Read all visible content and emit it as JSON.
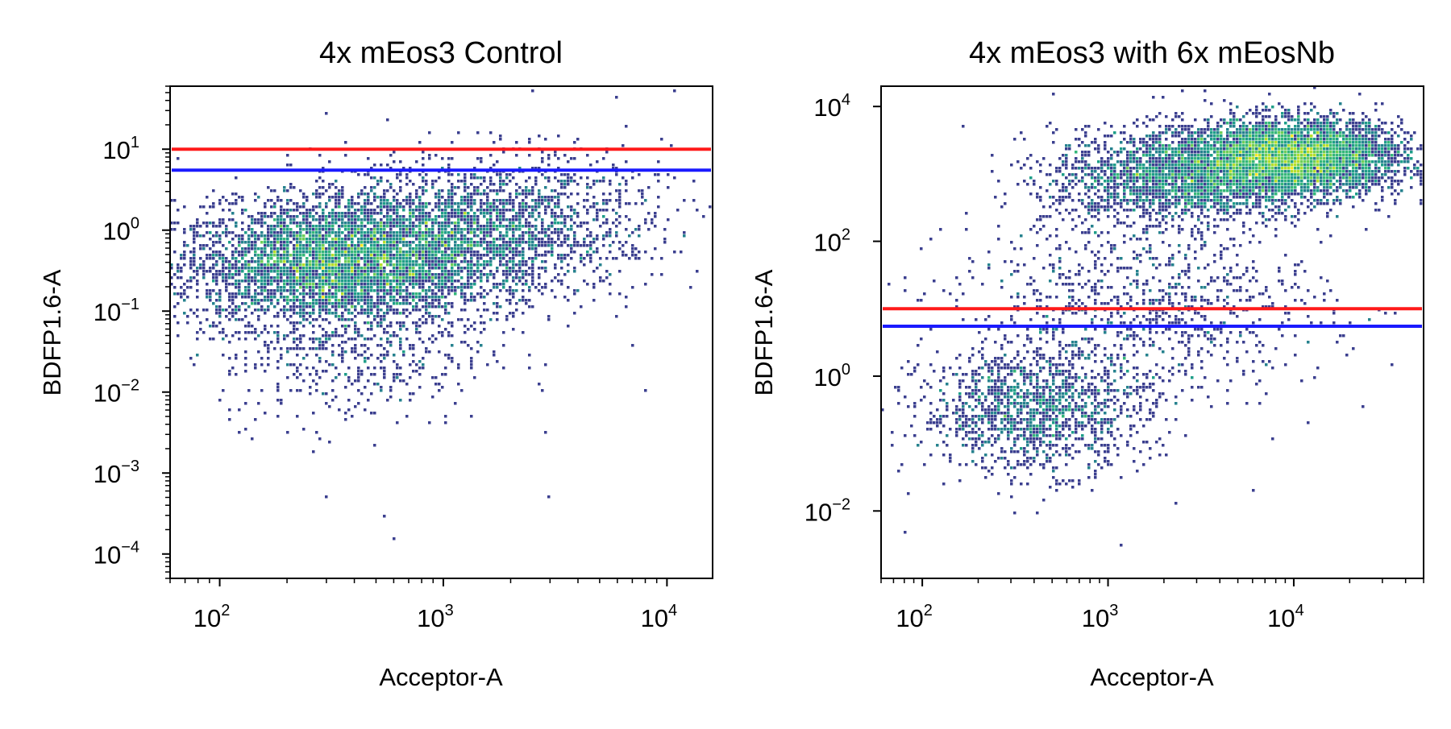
{
  "colors": {
    "threshold_high": "#ff1a1a",
    "threshold_low": "#1a1aff",
    "colormap": [
      "#3b3f8f",
      "#31688e",
      "#26828e",
      "#1f9e89",
      "#35b779",
      "#6ece58",
      "#b5de2b",
      "#fde725"
    ]
  },
  "chart_data": [
    {
      "type": "heatmap",
      "title": "4x mEos3 Control",
      "xlabel": "Acceptor-A",
      "ylabel": "BDFP1.6-A",
      "xscale": "log",
      "yscale": "log",
      "xlim": [
        60,
        16000
      ],
      "ylim": [
        5e-05,
        60
      ],
      "xticks": [
        {
          "base": "10",
          "exp": "2",
          "value": 100
        },
        {
          "base": "10",
          "exp": "3",
          "value": 1000
        },
        {
          "base": "10",
          "exp": "4",
          "value": 10000
        }
      ],
      "yticks": [
        {
          "base": "10",
          "exp": "1",
          "value": 10
        },
        {
          "base": "10",
          "exp": "0",
          "value": 1
        },
        {
          "base": "10",
          "exp": "−1",
          "value": 0.1
        },
        {
          "base": "10",
          "exp": "−2",
          "value": 0.01
        },
        {
          "base": "10",
          "exp": "−3",
          "value": 0.001
        },
        {
          "base": "10",
          "exp": "−4",
          "value": 0.0001
        }
      ],
      "hlines": [
        {
          "name": "upper-threshold",
          "y": 10,
          "color": "#ff1a1a"
        },
        {
          "name": "lower-threshold",
          "y": 5.5,
          "color": "#1a1aff"
        }
      ],
      "clusters": [
        {
          "x": 280,
          "y": 0.35,
          "sx": 0.32,
          "sy": 0.38,
          "n": 3200
        },
        {
          "x": 750,
          "y": 0.6,
          "sx": 0.38,
          "sy": 0.4,
          "n": 2400
        },
        {
          "x": 2000,
          "y": 1.5,
          "sx": 0.35,
          "sy": 0.4,
          "n": 1100
        },
        {
          "x": 400,
          "y": 0.03,
          "sx": 0.3,
          "sy": 0.45,
          "n": 500
        }
      ],
      "outliers": [
        [
          6000,
          45
        ],
        [
          11000,
          50
        ],
        [
          2500,
          50
        ],
        [
          600,
          0.00015
        ],
        [
          550,
          0.0003
        ],
        [
          300,
          0.0005
        ],
        [
          3000,
          0.0005
        ],
        [
          8000,
          0.01
        ]
      ]
    },
    {
      "type": "heatmap",
      "title": "4x mEos3 with 6x mEosNb",
      "xlabel": "Acceptor-A",
      "ylabel": "BDFP1.6-A",
      "xscale": "log",
      "yscale": "log",
      "xlim": [
        60,
        50000
      ],
      "ylim": [
        0.001,
        20000
      ],
      "xticks": [
        {
          "base": "10",
          "exp": "2",
          "value": 100
        },
        {
          "base": "10",
          "exp": "3",
          "value": 1000
        },
        {
          "base": "10",
          "exp": "4",
          "value": 10000
        }
      ],
      "yticks": [
        {
          "base": "10",
          "exp": "4",
          "value": 10000
        },
        {
          "base": "10",
          "exp": "2",
          "value": 100
        },
        {
          "base": "10",
          "exp": "0",
          "value": 1
        },
        {
          "base": "10",
          "exp": "−2",
          "value": 0.01
        }
      ],
      "hlines": [
        {
          "name": "upper-threshold",
          "y": 10,
          "color": "#ff1a1a"
        },
        {
          "name": "lower-threshold",
          "y": 5.5,
          "color": "#1a1aff"
        }
      ],
      "clusters": [
        {
          "x": 10000,
          "y": 1800,
          "sx": 0.3,
          "sy": 0.28,
          "n": 4200
        },
        {
          "x": 2500,
          "y": 900,
          "sx": 0.35,
          "sy": 0.35,
          "n": 2200
        },
        {
          "x": 400,
          "y": 0.3,
          "sx": 0.3,
          "sy": 0.45,
          "n": 1400
        },
        {
          "x": 1500,
          "y": 10,
          "sx": 0.5,
          "sy": 0.7,
          "n": 1000
        }
      ],
      "outliers": [
        [
          300,
          0.001
        ],
        [
          1200,
          0.003
        ],
        [
          80,
          0.005
        ],
        [
          6000,
          0.02
        ]
      ]
    }
  ]
}
